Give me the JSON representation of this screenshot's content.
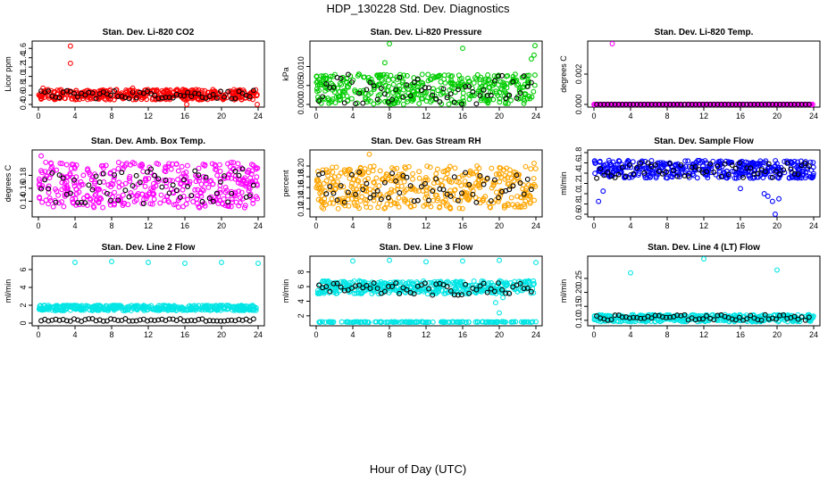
{
  "title": "HDP_130228  Std. Dev. Diagnostics",
  "xlabel": "Hour of Day (UTC)",
  "x_ticks": [
    "0",
    "4",
    "8",
    "12",
    "16",
    "20",
    "24"
  ],
  "chart_data": [
    {
      "type": "scatter",
      "title": "Stan. Dev. Li-820 CO2",
      "ylabel": "Licor ppm",
      "xlim": [
        0,
        24
      ],
      "ylim": [
        0.4,
        1.7
      ],
      "y_ticks": [
        "0.4",
        "0.6",
        "0.8",
        "1.0",
        "1.2",
        "1.4",
        "1.6"
      ],
      "color": "#ff0000",
      "band": [
        0.5,
        0.72
      ],
      "black_band": [
        0.52,
        0.7
      ],
      "series": [
        {
          "name": "outliers",
          "x": [
            3.5,
            3.5,
            0.5,
            10.3,
            15.8,
            16.2,
            23.9
          ],
          "y": [
            1.65,
            1.28,
            0.75,
            0.75,
            0.72,
            0.4,
            0.4
          ]
        }
      ]
    },
    {
      "type": "scatter",
      "title": "Stan. Dev. Li-820 Pressure",
      "ylabel": "kPa",
      "xlim": [
        0,
        24
      ],
      "ylim": [
        0,
        0.016
      ],
      "y_ticks": [
        "0.000",
        "0.005",
        "0.010"
      ],
      "color": "#00cc00",
      "band": [
        0.0,
        0.008
      ],
      "black_band": [
        0.0,
        0.008
      ],
      "series": [
        {
          "name": "outliers",
          "x": [
            8,
            7.5,
            23.9,
            23.5,
            23.8,
            16
          ],
          "y": [
            0.016,
            0.011,
            0.0155,
            0.012,
            0.013,
            0.0148
          ]
        }
      ]
    },
    {
      "type": "scatter",
      "title": "Stan. Dev. Li-820 Temp.",
      "ylabel": "degrees C",
      "xlim": [
        0,
        24
      ],
      "ylim": [
        0,
        0.004
      ],
      "y_ticks": [
        "0.000",
        "0.002"
      ],
      "color": "#ff00ff",
      "band": [
        0.0,
        0.0
      ],
      "black_band": [
        0.0,
        0.0
      ],
      "series": [
        {
          "name": "outliers",
          "x": [
            2
          ],
          "y": [
            0.004
          ]
        }
      ]
    },
    {
      "type": "scatter",
      "title": "Stan. Dev. Amb. Box Temp.",
      "ylabel": "degrees C",
      "xlim": [
        0,
        24
      ],
      "ylim": [
        0.12,
        0.215
      ],
      "y_ticks": [
        "0.14",
        "0.16",
        "0.18"
      ],
      "color": "#ff00ff",
      "band": [
        0.13,
        0.2
      ],
      "black_band": [
        0.135,
        0.19
      ],
      "series": [
        {
          "name": "outliers",
          "x": [
            0.3,
            0.8
          ],
          "y": [
            0.21,
            0.2
          ]
        }
      ]
    },
    {
      "type": "scatter",
      "title": "Stan. Dev. Gas Stream RH",
      "ylabel": "percent",
      "xlim": [
        0,
        24
      ],
      "ylim": [
        0.11,
        0.225
      ],
      "y_ticks": [
        "0.12",
        "0.14",
        "0.16",
        "0.18",
        "0.20"
      ],
      "color": "#ffa500",
      "band": [
        0.12,
        0.2
      ],
      "black_band": [
        0.13,
        0.19
      ],
      "series": [
        {
          "name": "outliers",
          "x": [
            5.8,
            23.8
          ],
          "y": [
            0.222,
            0.205
          ]
        }
      ]
    },
    {
      "type": "scatter",
      "title": "Stan. Dev. Sample Flow",
      "ylabel": "ml/min",
      "xlim": [
        0,
        24
      ],
      "ylim": [
        0.6,
        1.8
      ],
      "y_ticks": [
        "0.6",
        "0.8",
        "1.0",
        "1.2",
        "1.4",
        "1.6",
        "1.8"
      ],
      "color": "#0000ff",
      "band": [
        1.3,
        1.65
      ],
      "black_band": [
        1.3,
        1.6
      ],
      "series": [
        {
          "name": "low_scatter",
          "x": [
            0.5,
            1.0,
            19.0,
            19.5,
            19.8,
            20.2,
            18.6,
            16.0
          ],
          "y": [
            0.85,
            1.05,
            0.95,
            0.85,
            0.6,
            0.9,
            1.0,
            1.1
          ]
        }
      ]
    },
    {
      "type": "scatter",
      "title": "Stan. Dev. Line 2 Flow",
      "ylabel": "ml/min",
      "xlim": [
        0,
        24
      ],
      "ylim": [
        0,
        7.2
      ],
      "y_ticks": [
        "0",
        "2",
        "4",
        "6"
      ],
      "color": "#00e5e5",
      "band": [
        1.4,
        2.0
      ],
      "black_band": [
        0.2,
        0.5
      ],
      "series": [
        {
          "name": "outliers",
          "x": [
            4,
            8,
            12,
            16,
            20,
            24
          ],
          "y": [
            6.8,
            6.9,
            6.8,
            6.7,
            6.8,
            6.7
          ]
        }
      ]
    },
    {
      "type": "scatter",
      "title": "Stan. Dev. Line 3 Flow",
      "ylabel": "ml/min",
      "xlim": [
        0,
        24
      ],
      "ylim": [
        1,
        9.8
      ],
      "y_ticks": [
        "2",
        "4",
        "6",
        "8"
      ],
      "color": "#00e5e5",
      "band": [
        5.0,
        6.8
      ],
      "black_band": [
        4.8,
        6.5
      ],
      "low_band": [
        1.1,
        1.2
      ],
      "series": [
        {
          "name": "outliers",
          "x": [
            4,
            8,
            12,
            16,
            20,
            24,
            19.6,
            20.0,
            20.4
          ],
          "y": [
            9.5,
            9.6,
            9.4,
            9.5,
            9.6,
            9.3,
            3.8,
            2.4,
            4.5
          ]
        }
      ]
    },
    {
      "type": "scatter",
      "title": "Stan. Dev. Line 4 (LT) Flow",
      "ylabel": "ml/min",
      "xlim": [
        0,
        24
      ],
      "ylim": [
        0.09,
        0.32
      ],
      "y_ticks": [
        "0.10",
        "0.15",
        "0.20",
        "0.25"
      ],
      "color": "#00e5e5",
      "band": [
        0.095,
        0.12
      ],
      "black_band": [
        0.1,
        0.12
      ],
      "series": [
        {
          "name": "outliers",
          "x": [
            4,
            12,
            20
          ],
          "y": [
            0.27,
            0.32,
            0.28
          ]
        }
      ]
    }
  ]
}
